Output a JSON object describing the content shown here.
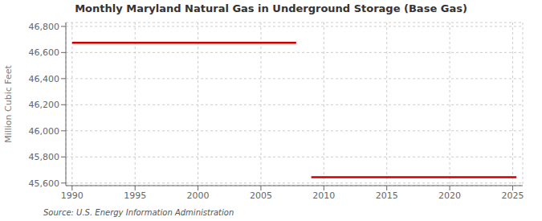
{
  "chart_data": {
    "type": "line",
    "title": "Monthly Maryland Natural Gas in Underground Storage (Base Gas)",
    "y_label": "Million Cubic Feet",
    "annotations": [
      "Source: U.S. Energy Information Administration"
    ],
    "series": [
      {
        "x": [
          1990.0,
          2007.8
        ],
        "values": [
          46675,
          46675
        ],
        "color": "#cc0000"
      },
      {
        "x": [
          2009.0,
          2025.3
        ],
        "values": [
          45645,
          45645
        ],
        "color": "#cc0000"
      }
    ],
    "xlim": [
      1989.5,
      2025.8
    ],
    "ylim": [
      45580,
      46830
    ],
    "xticks": [
      1990,
      1995,
      2000,
      2005,
      2010,
      2015,
      2020,
      2025
    ],
    "yticks": [
      {
        "value": 45600,
        "label": "45,600"
      },
      {
        "value": 45800,
        "label": "45,800"
      },
      {
        "value": 46000,
        "label": "46,000"
      },
      {
        "value": 46200,
        "label": "46,200"
      },
      {
        "value": 46400,
        "label": "46,400"
      },
      {
        "value": 46600,
        "label": "46,600"
      },
      {
        "value": 46800,
        "label": "46,800"
      }
    ],
    "grid": true
  }
}
